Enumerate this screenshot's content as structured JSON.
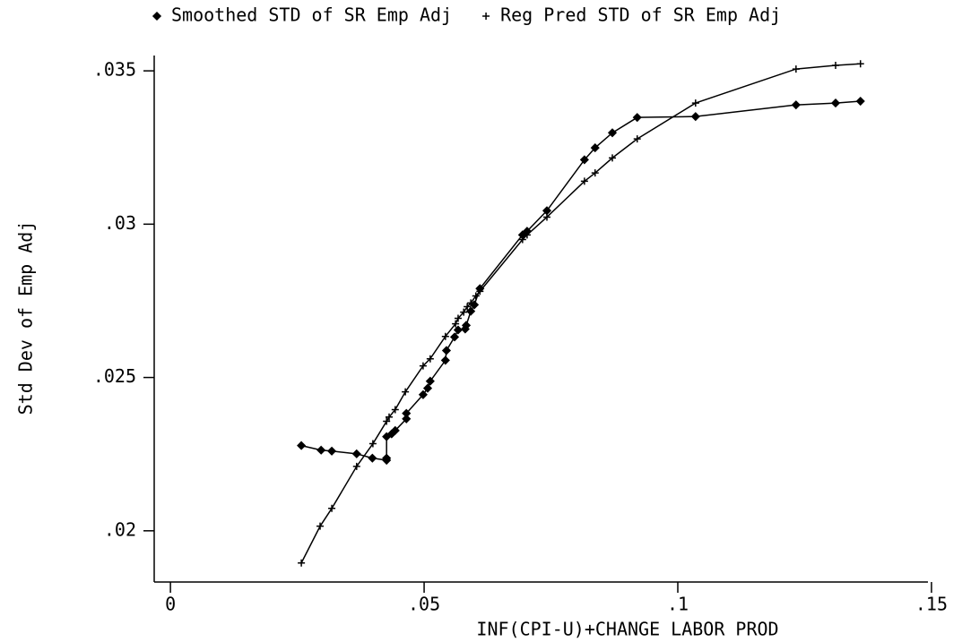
{
  "chart_data": {
    "type": "line",
    "xlabel": "INF(CPI-U)+CHANGE LABOR PROD",
    "ylabel": "Std Dev of Emp Adj",
    "xlim": [
      -0.0032,
      0.1493
    ],
    "ylim": [
      0.01833,
      0.0355
    ],
    "xticks": [
      0,
      {
        "value": 0.05,
        "label": ".05"
      },
      {
        "value": 0.1,
        "label": ".1"
      },
      {
        "value": 0.15,
        "label": ".15"
      }
    ],
    "yticks": [
      {
        "value": 0.02,
        "label": ".02"
      },
      {
        "value": 0.025,
        "label": ".025"
      },
      {
        "value": 0.03,
        "label": ".03"
      },
      {
        "value": 0.035,
        "label": ".035"
      }
    ],
    "series": [
      {
        "name": "Smoothed STD of SR Emp Adj",
        "color": "#000000",
        "marker": "diamond",
        "x": [
          0.0258,
          0.0297,
          0.0318,
          0.0367,
          0.0398,
          0.0426,
          0.0426,
          0.0426,
          0.0436,
          0.0443,
          0.0465,
          0.0465,
          0.0498,
          0.0507,
          0.0512,
          0.0542,
          0.0544,
          0.056,
          0.0567,
          0.0581,
          0.0583,
          0.0592,
          0.0599,
          0.061,
          0.0694,
          0.0703,
          0.0742,
          0.0816,
          0.0837,
          0.0871,
          0.092,
          0.1035,
          0.1233,
          0.1311,
          0.136
        ],
        "values": [
          0.02278,
          0.02263,
          0.0226,
          0.02251,
          0.02237,
          0.0223,
          0.02237,
          0.02307,
          0.02316,
          0.02327,
          0.02365,
          0.02383,
          0.02444,
          0.02465,
          0.02488,
          0.02556,
          0.02588,
          0.02632,
          0.02655,
          0.02658,
          0.0267,
          0.02716,
          0.02737,
          0.0279,
          0.02965,
          0.02977,
          0.03044,
          0.0321,
          0.03249,
          0.03298,
          0.03348,
          0.03351,
          0.03389,
          0.03395,
          0.03401
        ]
      },
      {
        "name": "Reg Pred STD of SR Emp Adj",
        "color": "#000000",
        "marker": "plus",
        "x": [
          0.0258,
          0.0295,
          0.0318,
          0.0367,
          0.0399,
          0.0426,
          0.0431,
          0.0443,
          0.0463,
          0.0498,
          0.0512,
          0.0542,
          0.0562,
          0.0567,
          0.0578,
          0.0585,
          0.0592,
          0.0602,
          0.061,
          0.0694,
          0.0703,
          0.0742,
          0.0816,
          0.0837,
          0.0871,
          0.092,
          0.1035,
          0.1233,
          0.1311,
          0.136
        ],
        "values": [
          0.01895,
          0.02015,
          0.02073,
          0.0221,
          0.02284,
          0.02357,
          0.02371,
          0.02395,
          0.02453,
          0.02538,
          0.02561,
          0.02634,
          0.02675,
          0.02693,
          0.02713,
          0.02731,
          0.02743,
          0.02766,
          0.02781,
          0.0295,
          0.02965,
          0.03023,
          0.0314,
          0.03167,
          0.03216,
          0.03278,
          0.03395,
          0.03506,
          0.03518,
          0.03523
        ]
      }
    ]
  }
}
